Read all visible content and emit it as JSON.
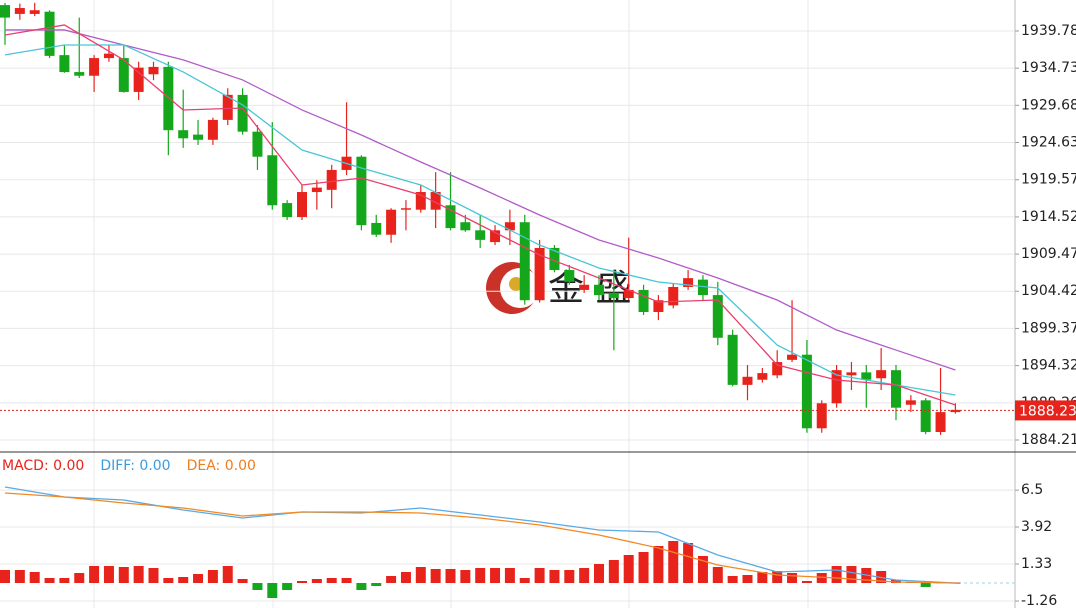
{
  "chart_data": [
    {
      "type": "candlestick",
      "up_color": "#e8231c",
      "down_color": "#15a71b",
      "open": [
        1943.3,
        1942.1,
        1942.1,
        1942.4,
        1936.5,
        1934.2,
        1933.7,
        1936.1,
        1936.1,
        1931.5,
        1933.9,
        1934.9,
        1926.3,
        1925.7,
        1925.0,
        1927.7,
        1931.1,
        1926.1,
        1922.9,
        1916.4,
        1914.5,
        1917.9,
        1918.2,
        1920.9,
        1922.7,
        1913.7,
        1912.1,
        1915.5,
        1915.5,
        1915.5,
        1916.1,
        1913.8,
        1912.7,
        1911.1,
        1912.7,
        1913.8,
        1903.2,
        1910.3,
        1907.3,
        1904.6,
        1905.3,
        1904.2,
        1903.5,
        1904.6,
        1901.6,
        1902.5,
        1905.0,
        1906.0,
        1903.9,
        1898.5,
        1891.7,
        1892.4,
        1893.0,
        1895.1,
        1895.8,
        1885.8,
        1889.2,
        1893.0,
        1893.4,
        1892.6,
        1893.7,
        1889.0,
        1889.6,
        1885.3,
        1888.0
      ],
      "high": [
        1943.6,
        1943.5,
        1943.6,
        1942.6,
        1937.9,
        1941.6,
        1936.5,
        1937.9,
        1937.9,
        1935.6,
        1935.6,
        1935.6,
        1931.8,
        1927.7,
        1928.0,
        1932.0,
        1932.0,
        1927.0,
        1927.4,
        1916.8,
        1918.9,
        1919.5,
        1921.6,
        1930.1,
        1922.9,
        1914.8,
        1915.7,
        1916.8,
        1918.9,
        1920.6,
        1920.6,
        1914.8,
        1914.8,
        1913.4,
        1915.5,
        1914.8,
        1911.4,
        1910.7,
        1908.0,
        1906.6,
        1906.6,
        1907.3,
        1911.7,
        1905.3,
        1903.9,
        1905.5,
        1907.3,
        1906.6,
        1905.7,
        1899.2,
        1894.4,
        1894.0,
        1896.4,
        1903.2,
        1897.8,
        1889.6,
        1894.4,
        1894.8,
        1894.4,
        1896.7,
        1894.4,
        1890.3,
        1889.9,
        1894.0,
        1889.2
      ],
      "low": [
        1937.9,
        1941.3,
        1941.8,
        1936.1,
        1934.1,
        1933.4,
        1931.5,
        1935.6,
        1931.4,
        1930.4,
        1933.1,
        1922.9,
        1923.9,
        1924.3,
        1924.3,
        1927.0,
        1925.7,
        1920.9,
        1915.5,
        1914.1,
        1914.1,
        1915.5,
        1915.7,
        1920.2,
        1912.7,
        1911.8,
        1911.0,
        1912.7,
        1915.1,
        1913.0,
        1912.7,
        1912.5,
        1910.3,
        1910.7,
        1910.7,
        1902.6,
        1902.9,
        1907.0,
        1905.3,
        1904.2,
        1903.2,
        1896.4,
        1903.2,
        1901.2,
        1900.5,
        1902.1,
        1904.6,
        1903.2,
        1897.1,
        1891.5,
        1889.6,
        1892.0,
        1892.6,
        1894.8,
        1885.2,
        1885.2,
        1888.6,
        1891.0,
        1888.6,
        1891.0,
        1886.9,
        1888.0,
        1885.0,
        1884.9,
        1887.8
      ],
      "close": [
        1941.6,
        1942.9,
        1942.6,
        1936.4,
        1934.2,
        1933.7,
        1936.1,
        1936.7,
        1931.5,
        1934.8,
        1934.9,
        1926.3,
        1925.2,
        1925.0,
        1927.7,
        1931.1,
        1926.1,
        1922.7,
        1916.1,
        1914.5,
        1917.9,
        1918.5,
        1920.9,
        1922.7,
        1913.4,
        1912.1,
        1915.5,
        1915.7,
        1917.9,
        1917.9,
        1913.0,
        1912.7,
        1911.4,
        1912.7,
        1913.8,
        1903.2,
        1910.3,
        1907.3,
        1905.7,
        1905.3,
        1903.9,
        1903.5,
        1904.6,
        1901.6,
        1903.2,
        1905.0,
        1906.2,
        1903.9,
        1898.1,
        1891.7,
        1892.8,
        1893.3,
        1894.8,
        1895.8,
        1885.8,
        1889.2,
        1893.7,
        1893.4,
        1892.4,
        1893.7,
        1888.6,
        1889.6,
        1885.3,
        1888.0,
        1888.3
      ],
      "series": [
        {
          "color": "#b35cc9",
          "x": [
            0,
            4,
            8,
            12,
            16,
            20,
            24,
            28,
            32,
            36,
            40,
            44,
            48,
            52,
            56,
            60,
            64
          ],
          "values": [
            1939.92,
            1939.92,
            1937.88,
            1935.85,
            1933.13,
            1929.05,
            1925.65,
            1921.98,
            1918.45,
            1914.78,
            1911.38,
            1908.94,
            1906.22,
            1903.23,
            1899.15,
            1896.43,
            1893.72
          ]
        },
        {
          "color": "#48c6d6",
          "x": [
            0,
            4,
            8,
            12,
            16,
            20,
            24,
            28,
            32,
            36,
            40,
            44,
            48,
            52,
            56,
            60,
            64
          ],
          "values": [
            1936.53,
            1937.88,
            1937.88,
            1934.22,
            1929.73,
            1923.61,
            1921.17,
            1918.86,
            1914.78,
            1910.7,
            1907.58,
            1905.68,
            1904.86,
            1897.11,
            1893.04,
            1891.68,
            1890.32
          ]
        },
        {
          "color": "#ea3f6e",
          "x": [
            0,
            4,
            8,
            12,
            16,
            20,
            24,
            28,
            32,
            36,
            40,
            44,
            48,
            52,
            56,
            60,
            64
          ],
          "values": [
            1939.24,
            1940.6,
            1935.85,
            1929.05,
            1929.32,
            1918.86,
            1919.81,
            1917.5,
            1913.42,
            1909.35,
            1906.22,
            1902.96,
            1903.23,
            1894.4,
            1892.36,
            1891.68,
            1888.96
          ]
        }
      ],
      "ylim": [
        1882.58,
        1943.99
      ],
      "yticks": [
        1939.78,
        1934.73,
        1929.68,
        1924.63,
        1919.57,
        1914.52,
        1909.47,
        1904.42,
        1899.37,
        1894.32,
        1889.26,
        1884.21
      ],
      "last_price": 1888.23,
      "watermark": "金 盛",
      "grid": true
    },
    {
      "type": "macd",
      "labels": [
        "MACD: 0.00",
        "DIFF: 0.00",
        "DEA: 0.00"
      ],
      "label_colors": [
        "#e8231c",
        "#3d9be0",
        "#ee7d1e"
      ],
      "histogram": [
        0.91,
        0.91,
        0.77,
        0.35,
        0.35,
        0.7,
        1.19,
        1.19,
        1.12,
        1.19,
        1.05,
        0.35,
        0.42,
        0.63,
        0.91,
        1.19,
        0.28,
        -0.49,
        -1.05,
        -0.49,
        0.14,
        0.28,
        0.35,
        0.35,
        -0.49,
        -0.21,
        0.49,
        0.77,
        1.12,
        0.98,
        0.98,
        0.91,
        1.05,
        1.05,
        1.05,
        0.35,
        1.05,
        0.91,
        0.91,
        1.05,
        1.33,
        1.61,
        1.96,
        2.17,
        2.59,
        2.94,
        2.8,
        1.89,
        1.12,
        0.49,
        0.56,
        0.77,
        0.84,
        0.7,
        0.14,
        0.7,
        1.19,
        1.19,
        1.05,
        0.84,
        0.21,
        0.07,
        -0.28,
        0.05,
        0.03
      ],
      "series": [
        {
          "color": "#5aaae6",
          "x": [
            0,
            4,
            8,
            12,
            16,
            20,
            24,
            28,
            32,
            36,
            40,
            44,
            48,
            52,
            56,
            60,
            64
          ],
          "values": [
            6.72,
            6.02,
            5.81,
            5.11,
            4.55,
            4.97,
            4.9,
            5.25,
            4.76,
            4.27,
            3.71,
            3.57,
            1.96,
            0.77,
            0.91,
            0.21,
            0
          ]
        },
        {
          "color": "#f08a24",
          "x": [
            0,
            4,
            8,
            12,
            16,
            20,
            24,
            28,
            32,
            36,
            40,
            44,
            48,
            52,
            56,
            60,
            64
          ],
          "values": [
            6.3,
            6.02,
            5.6,
            5.25,
            4.69,
            4.97,
            4.97,
            4.9,
            4.55,
            4.06,
            3.36,
            2.45,
            1.26,
            0.56,
            0.35,
            0.07,
            0
          ]
        }
      ],
      "ylim": [
        -1.75,
        9.1
      ],
      "yticks": [
        6.5,
        3.92,
        1.33,
        -1.26
      ],
      "grid": true
    }
  ]
}
